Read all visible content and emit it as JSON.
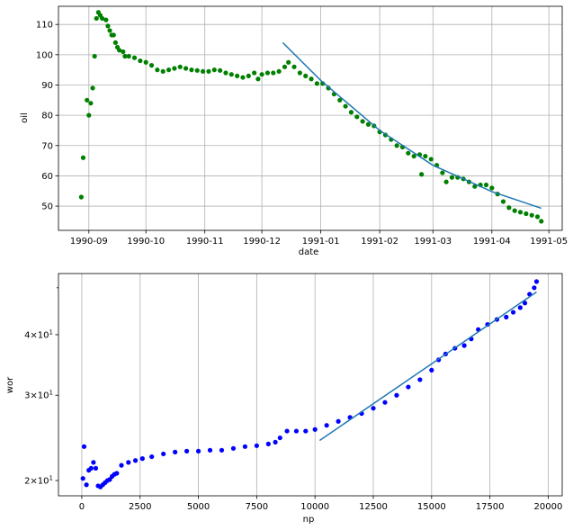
{
  "chart_data": [
    {
      "type": "scatter",
      "xlabel": "date",
      "ylabel": "oil",
      "x_ticks": [
        "1990-09",
        "1990-10",
        "1990-11",
        "1990-12",
        "1991-01",
        "1991-02",
        "1991-03",
        "1991-04",
        "1991-05"
      ],
      "y_ticks": [
        50,
        60,
        70,
        80,
        90,
        100,
        110
      ],
      "xlim": [
        "1990-08-16",
        "1991-05-08"
      ],
      "ylim": [
        42,
        116
      ],
      "grid": true,
      "series": [
        {
          "type": "scatter",
          "color": "#008000",
          "points": [
            [
              "1990-08-28",
              53
            ],
            [
              "1990-08-29",
              66
            ],
            [
              "1990-08-31",
              85
            ],
            [
              "1990-09-01",
              80
            ],
            [
              "1990-09-02",
              84
            ],
            [
              "1990-09-03",
              89
            ],
            [
              "1990-09-04",
              99.5
            ],
            [
              "1990-09-05",
              112
            ],
            [
              "1990-09-06",
              114
            ],
            [
              "1990-09-07",
              113
            ],
            [
              "1990-09-08",
              112
            ],
            [
              "1990-09-10",
              111.5
            ],
            [
              "1990-09-11",
              109.5
            ],
            [
              "1990-09-12",
              108
            ],
            [
              "1990-09-13",
              106.5
            ],
            [
              "1990-09-14",
              106.5
            ],
            [
              "1990-09-15",
              104
            ],
            [
              "1990-09-16",
              102.5
            ],
            [
              "1990-09-17",
              101.5
            ],
            [
              "1990-09-19",
              101
            ],
            [
              "1990-09-20",
              99.5
            ],
            [
              "1990-09-22",
              99.5
            ],
            [
              "1990-09-25",
              99
            ],
            [
              "1990-09-28",
              98
            ],
            [
              "1990-10-01",
              97.5
            ],
            [
              "1990-10-04",
              96.5
            ],
            [
              "1990-10-07",
              95
            ],
            [
              "1990-10-10",
              94.5
            ],
            [
              "1990-10-13",
              95
            ],
            [
              "1990-10-16",
              95.5
            ],
            [
              "1990-10-19",
              96
            ],
            [
              "1990-10-22",
              95.5
            ],
            [
              "1990-10-25",
              95
            ],
            [
              "1990-10-28",
              94.8
            ],
            [
              "1990-10-31",
              94.5
            ],
            [
              "1990-11-03",
              94.5
            ],
            [
              "1990-11-06",
              95
            ],
            [
              "1990-11-09",
              94.8
            ],
            [
              "1990-11-12",
              94
            ],
            [
              "1990-11-15",
              93.5
            ],
            [
              "1990-11-18",
              93
            ],
            [
              "1990-11-21",
              92.5
            ],
            [
              "1990-11-24",
              93
            ],
            [
              "1990-11-27",
              94
            ],
            [
              "1990-11-29",
              92
            ],
            [
              "1990-12-01",
              93.5
            ],
            [
              "1990-12-04",
              94
            ],
            [
              "1990-12-07",
              94
            ],
            [
              "1990-12-10",
              94.5
            ],
            [
              "1990-12-13",
              96
            ],
            [
              "1990-12-15",
              97.5
            ],
            [
              "1990-12-18",
              96
            ],
            [
              "1990-12-21",
              94
            ],
            [
              "1990-12-24",
              93
            ],
            [
              "1990-12-27",
              92
            ],
            [
              "1990-12-30",
              90.5
            ],
            [
              "1991-01-02",
              90.5
            ],
            [
              "1991-01-05",
              89
            ],
            [
              "1991-01-08",
              87
            ],
            [
              "1991-01-11",
              85
            ],
            [
              "1991-01-14",
              83
            ],
            [
              "1991-01-17",
              81
            ],
            [
              "1991-01-20",
              79.5
            ],
            [
              "1991-01-23",
              78
            ],
            [
              "1991-01-26",
              77
            ],
            [
              "1991-01-29",
              76.5
            ],
            [
              "1991-02-01",
              74.5
            ],
            [
              "1991-02-04",
              73.5
            ],
            [
              "1991-02-07",
              72
            ],
            [
              "1991-02-10",
              70
            ],
            [
              "1991-02-13",
              69.5
            ],
            [
              "1991-02-16",
              67.5
            ],
            [
              "1991-02-19",
              66.5
            ],
            [
              "1991-02-22",
              67
            ],
            [
              "1991-02-23",
              60.5
            ],
            [
              "1991-02-25",
              66.5
            ],
            [
              "1991-02-28",
              65.5
            ],
            [
              "1991-03-03",
              63.5
            ],
            [
              "1991-03-06",
              61
            ],
            [
              "1991-03-08",
              58
            ],
            [
              "1991-03-11",
              59.5
            ],
            [
              "1991-03-14",
              59.5
            ],
            [
              "1991-03-17",
              59
            ],
            [
              "1991-03-20",
              58
            ],
            [
              "1991-03-23",
              56.5
            ],
            [
              "1991-03-26",
              57
            ],
            [
              "1991-03-29",
              57
            ],
            [
              "1991-04-01",
              56
            ],
            [
              "1991-04-04",
              54
            ],
            [
              "1991-04-07",
              51.5
            ],
            [
              "1991-04-10",
              49.5
            ],
            [
              "1991-04-13",
              48.5
            ],
            [
              "1991-04-16",
              48
            ],
            [
              "1991-04-19",
              47.5
            ],
            [
              "1991-04-22",
              47
            ],
            [
              "1991-04-25",
              46.5
            ],
            [
              "1991-04-27",
              45
            ]
          ]
        },
        {
          "type": "line",
          "color": "#1f77b4",
          "points": [
            [
              "1990-12-12",
              104
            ],
            [
              "1991-01-01",
              91.5
            ],
            [
              "1991-02-01",
              75
            ],
            [
              "1991-03-01",
              63.5
            ],
            [
              "1991-04-01",
              54.8
            ],
            [
              "1991-04-27",
              49.3
            ]
          ]
        }
      ]
    },
    {
      "type": "scatter",
      "xlabel": "np",
      "ylabel": "wor",
      "y_scale": "log",
      "x_ticks": [
        "0",
        "2500",
        "5000",
        "7500",
        "10000",
        "12500",
        "15000",
        "17500",
        "20000"
      ],
      "y_ticks": [
        {
          "value": 20,
          "base": "2×10",
          "exp": "1"
        },
        {
          "value": 30,
          "base": "3×10",
          "exp": "1"
        },
        {
          "value": 40,
          "base": "4×10",
          "exp": "1"
        }
      ],
      "xlim": [
        -1000,
        20600
      ],
      "ylim": [
        18.6,
        53.5
      ],
      "grid": true,
      "series": [
        {
          "type": "scatter",
          "color": "#0000ff",
          "points": [
            [
              50,
              20.2
            ],
            [
              100,
              23.5
            ],
            [
              200,
              19.6
            ],
            [
              300,
              21
            ],
            [
              400,
              21.2
            ],
            [
              500,
              21.8
            ],
            [
              600,
              21.2
            ],
            [
              700,
              19.5
            ],
            [
              800,
              19.4
            ],
            [
              900,
              19.6
            ],
            [
              1000,
              19.8
            ],
            [
              1100,
              20
            ],
            [
              1200,
              20.1
            ],
            [
              1300,
              20.4
            ],
            [
              1400,
              20.6
            ],
            [
              1500,
              20.7
            ],
            [
              1700,
              21.5
            ],
            [
              2000,
              21.8
            ],
            [
              2300,
              22
            ],
            [
              2600,
              22.2
            ],
            [
              3000,
              22.4
            ],
            [
              3500,
              22.7
            ],
            [
              4000,
              22.9
            ],
            [
              4500,
              23
            ],
            [
              5000,
              23
            ],
            [
              5500,
              23.1
            ],
            [
              6000,
              23.1
            ],
            [
              6500,
              23.3
            ],
            [
              7000,
              23.5
            ],
            [
              7500,
              23.6
            ],
            [
              8000,
              23.8
            ],
            [
              8300,
              24
            ],
            [
              8500,
              24.5
            ],
            [
              8800,
              25.3
            ],
            [
              9200,
              25.3
            ],
            [
              9600,
              25.3
            ],
            [
              10000,
              25.5
            ],
            [
              10500,
              26
            ],
            [
              11000,
              26.5
            ],
            [
              11500,
              27
            ],
            [
              12000,
              27.5
            ],
            [
              12500,
              28.2
            ],
            [
              13000,
              29
            ],
            [
              13500,
              30
            ],
            [
              14000,
              31.2
            ],
            [
              14500,
              32.3
            ],
            [
              15000,
              33.8
            ],
            [
              15300,
              35.5
            ],
            [
              15600,
              36.5
            ],
            [
              16000,
              37.5
            ],
            [
              16400,
              38
            ],
            [
              16700,
              39.2
            ],
            [
              17000,
              41
            ],
            [
              17400,
              42
            ],
            [
              17800,
              43
            ],
            [
              18200,
              43.5
            ],
            [
              18500,
              44.5
            ],
            [
              18800,
              45.5
            ],
            [
              19000,
              46.5
            ],
            [
              19200,
              48.5
            ],
            [
              19400,
              50
            ],
            [
              19500,
              51.5
            ]
          ]
        },
        {
          "type": "line",
          "color": "#1f77b4",
          "points": [
            [
              10200,
              24.2
            ],
            [
              19500,
              49
            ]
          ]
        }
      ]
    }
  ]
}
